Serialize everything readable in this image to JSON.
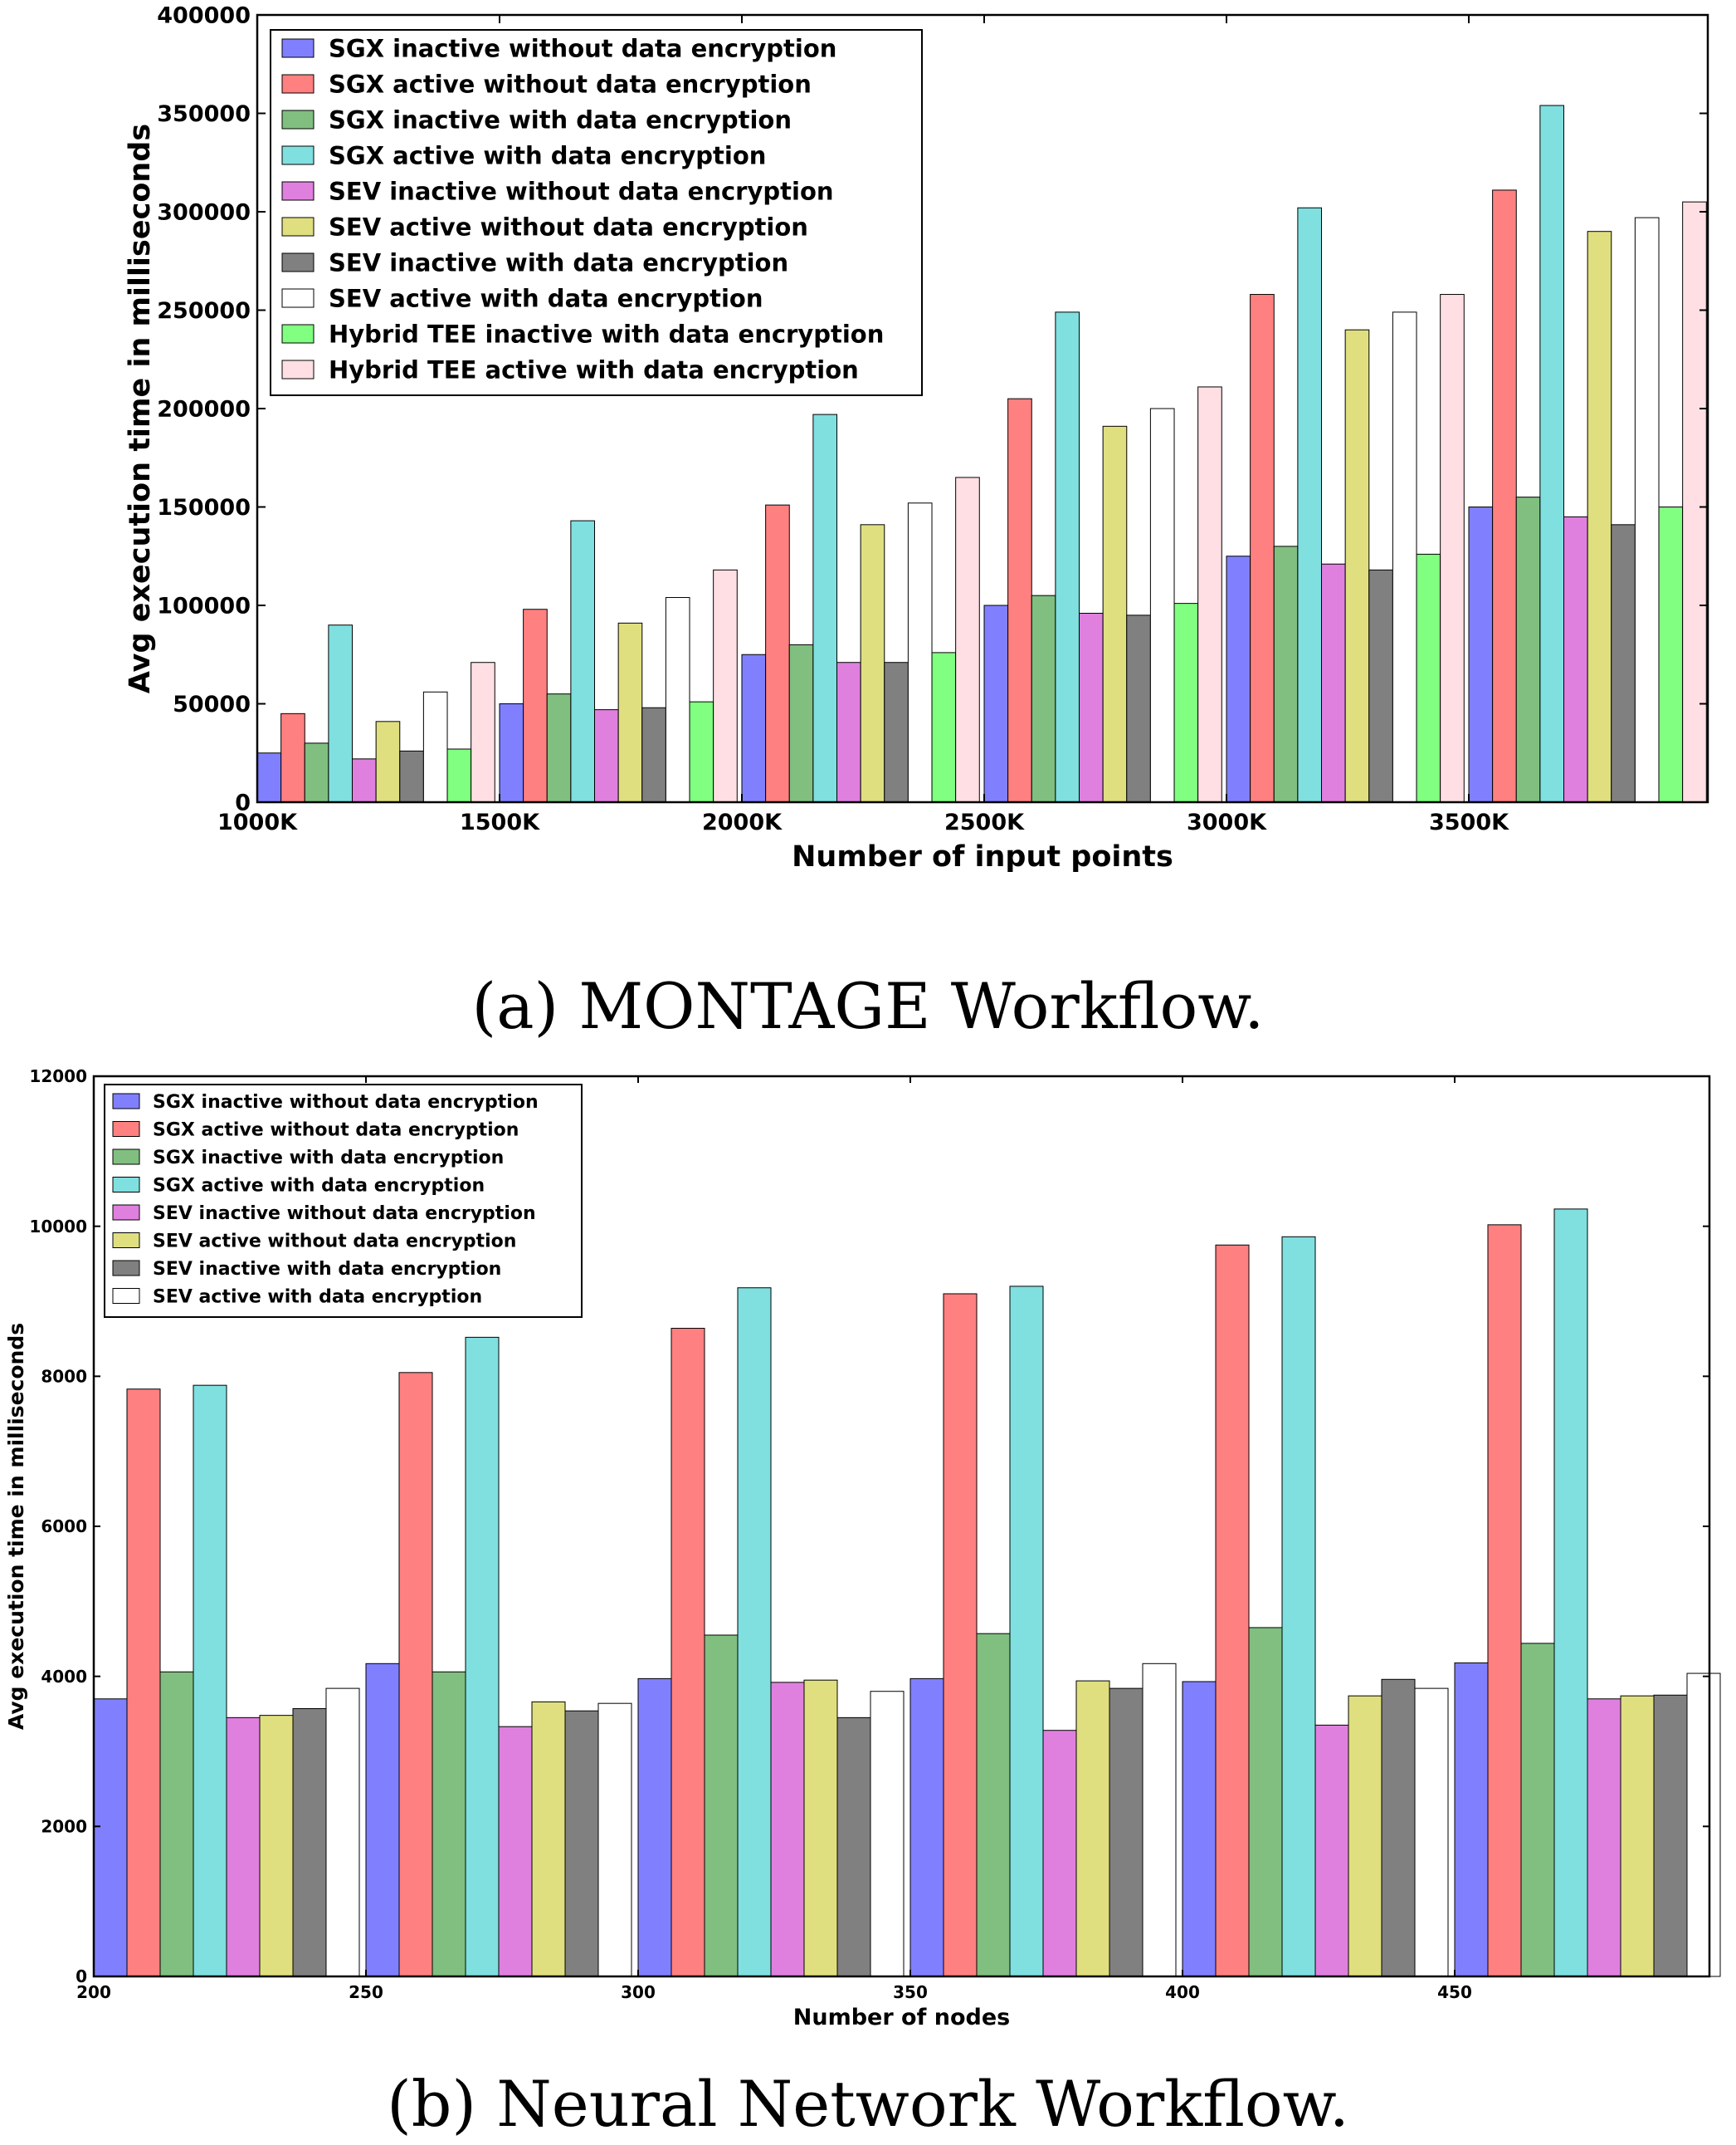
{
  "colors": {
    "SGX inactive without data encryption": "#8080ff",
    "SGX active without data encryption": "#ff8080",
    "SGX inactive with data encryption": "#80bf80",
    "SGX active with data encryption": "#80dfdf",
    "SEV inactive without data encryption": "#df80df",
    "SEV active without data encryption": "#dfdf80",
    "SEV inactive with data encryption": "#808080",
    "SEV active with data encryption": "#ffffff",
    "Hybrid TEE inactive with data encryption": "#80ff80",
    "Hybrid TEE active with data encryption": "#ffdfe3"
  },
  "chart_data": [
    {
      "type": "bar",
      "caption": "(a) MONTAGE Workflow.",
      "xlabel": "Number of input points",
      "ylabel": "Avg execution time in milliseconds",
      "xtick_labels": [
        "1000K",
        "1500K",
        "2000K",
        "2500K",
        "3000K",
        "3500K"
      ],
      "ylim": [
        0,
        400000
      ],
      "yticks": [
        0,
        50000,
        100000,
        150000,
        200000,
        250000,
        300000,
        350000,
        400000
      ],
      "legend_position": "upper-left",
      "grid": false,
      "series": [
        {
          "name": "SGX inactive without data encryption",
          "values": [
            25000,
            50000,
            75000,
            100000,
            125000,
            150000
          ]
        },
        {
          "name": "SGX active without data encryption",
          "values": [
            45000,
            98000,
            151000,
            205000,
            258000,
            311000
          ]
        },
        {
          "name": "SGX inactive with data encryption",
          "values": [
            30000,
            55000,
            80000,
            105000,
            130000,
            155000
          ]
        },
        {
          "name": "SGX active with data encryption",
          "values": [
            90000,
            143000,
            197000,
            249000,
            302000,
            354000
          ]
        },
        {
          "name": "SEV inactive without data encryption",
          "values": [
            22000,
            47000,
            71000,
            96000,
            121000,
            145000
          ]
        },
        {
          "name": "SEV active without data encryption",
          "values": [
            41000,
            91000,
            141000,
            191000,
            240000,
            290000
          ]
        },
        {
          "name": "SEV inactive with data encryption",
          "values": [
            26000,
            48000,
            71000,
            95000,
            118000,
            141000
          ]
        },
        {
          "name": "SEV active with data encryption",
          "values": [
            56000,
            104000,
            152000,
            200000,
            249000,
            297000
          ]
        },
        {
          "name": "Hybrid TEE inactive with data encryption",
          "values": [
            27000,
            51000,
            76000,
            101000,
            126000,
            150000
          ]
        },
        {
          "name": "Hybrid TEE active with data encryption",
          "values": [
            71000,
            118000,
            165000,
            211000,
            258000,
            305000
          ]
        }
      ]
    },
    {
      "type": "bar",
      "caption": "(b) Neural Network Workflow.",
      "xlabel": "Number of nodes",
      "ylabel": "Avg execution time in milliseconds",
      "xtick_labels": [
        "200",
        "250",
        "300",
        "350",
        "400",
        "450"
      ],
      "ylim": [
        0,
        12000
      ],
      "yticks": [
        0,
        2000,
        4000,
        6000,
        8000,
        10000,
        12000
      ],
      "legend_position": "upper-left",
      "grid": false,
      "series": [
        {
          "name": "SGX inactive without data encryption",
          "values": [
            3700,
            4170,
            3970,
            3970,
            3930,
            4180
          ]
        },
        {
          "name": "SGX active without data encryption",
          "values": [
            7830,
            8050,
            8640,
            9100,
            9750,
            10020
          ]
        },
        {
          "name": "SGX inactive with data encryption",
          "values": [
            4060,
            4060,
            4550,
            4570,
            4650,
            4440
          ]
        },
        {
          "name": "SGX active with data encryption",
          "values": [
            7880,
            8520,
            9180,
            9200,
            9860,
            10230
          ]
        },
        {
          "name": "SEV inactive without data encryption",
          "values": [
            3450,
            3330,
            3920,
            3280,
            3350,
            3700
          ]
        },
        {
          "name": "SEV active without data encryption",
          "values": [
            3480,
            3660,
            3950,
            3940,
            3740,
            3740
          ]
        },
        {
          "name": "SEV inactive with data encryption",
          "values": [
            3570,
            3540,
            3450,
            3840,
            3960,
            3750
          ]
        },
        {
          "name": "SEV active with data encryption",
          "values": [
            3840,
            3640,
            3800,
            4170,
            3840,
            4040
          ]
        }
      ]
    }
  ]
}
